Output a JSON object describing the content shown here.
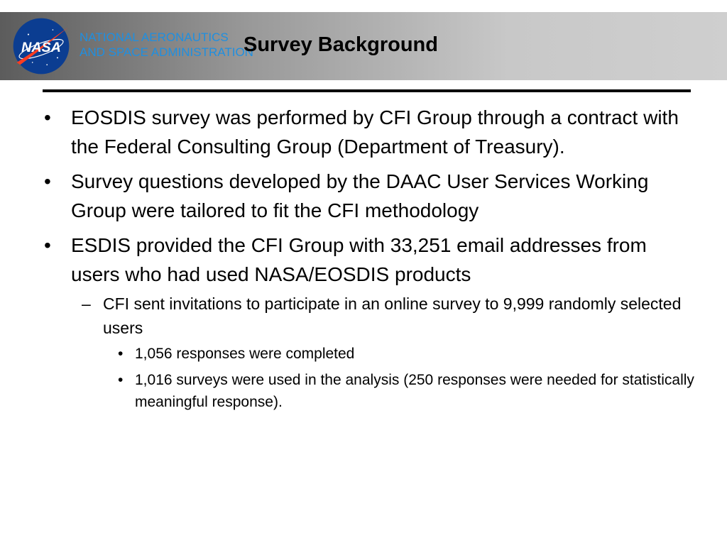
{
  "header": {
    "agency_line1": "NATIONAL AERONAUTICS",
    "agency_line2": "AND SPACE ADMINISTRATION",
    "logo_text": "NASA",
    "title": "Survey Background",
    "colors": {
      "agency_text": "#1f8fe0",
      "logo_blue": "#0b3d91",
      "logo_red": "#fc3d21"
    }
  },
  "bullets": [
    {
      "level": 1,
      "marker": "•",
      "text": "EOSDIS survey was performed by CFI Group through a contract with the Federal Consulting Group (Department of Treasury)."
    },
    {
      "level": 1,
      "marker": "•",
      "text": "Survey questions developed by the DAAC User Services Working Group were tailored to fit the CFI methodology"
    },
    {
      "level": 1,
      "marker": "•",
      "text": "ESDIS provided the CFI Group with 33,251 email addresses from users who had used NASA/EOSDIS products"
    },
    {
      "level": 2,
      "marker": "–",
      "text": "CFI sent invitations to participate in an online survey to 9,999 randomly selected users"
    },
    {
      "level": 3,
      "marker": "•",
      "text": "1,056 responses were completed"
    },
    {
      "level": 3,
      "marker": "•",
      "text": "1,016 surveys were used in the analysis (250 responses were needed for statistically meaningful response)."
    }
  ]
}
